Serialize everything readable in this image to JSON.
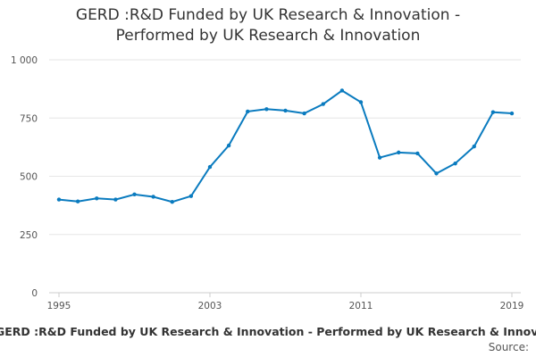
{
  "chart_data": {
    "type": "line",
    "title": "GERD :R&D Funded by UK Research & Innovation - Performed by UK Research & Innovation",
    "title_lines": [
      "GERD :R&D Funded by UK Research & Innovation -",
      "Performed by UK Research & Innovation"
    ],
    "xlabel": "",
    "ylabel": "",
    "x": [
      1995,
      1996,
      1997,
      1998,
      1999,
      2000,
      2001,
      2002,
      2003,
      2004,
      2005,
      2006,
      2007,
      2008,
      2009,
      2010,
      2011,
      2012,
      2013,
      2014,
      2015,
      2016,
      2017,
      2018,
      2019
    ],
    "series": [
      {
        "name": "GERD :R&D Funded by UK Research & Innovation - Performed by UK Research & Innovation",
        "values": [
          400,
          392,
          405,
          400,
          422,
          412,
          390,
          415,
          540,
          632,
          778,
          788,
          782,
          770,
          810,
          868,
          818,
          580,
          602,
          598,
          512,
          555,
          628,
          775,
          770
        ],
        "color": "#0a7bbf"
      }
    ],
    "ylim": [
      0,
      1000
    ],
    "xlim": [
      1995,
      2019
    ],
    "y_ticks": [
      0,
      250,
      500,
      750,
      1000
    ],
    "y_tick_labels": [
      "0",
      "250",
      "500",
      "750",
      "1 000"
    ],
    "x_ticks": [
      1995,
      2003,
      2011,
      2019
    ],
    "x_tick_labels": [
      "1995",
      "2003",
      "2011",
      "2019"
    ],
    "grid": true,
    "legend": "bottom"
  },
  "footer": {
    "series_label": "GERD :R&D Funded by UK Research & Innovation - Performed by UK Research & Innovation",
    "source_label": "Source:"
  },
  "colors": {
    "line": "#0a7bbf",
    "grid": "#e6e6e6",
    "axis": "#cccccc"
  }
}
